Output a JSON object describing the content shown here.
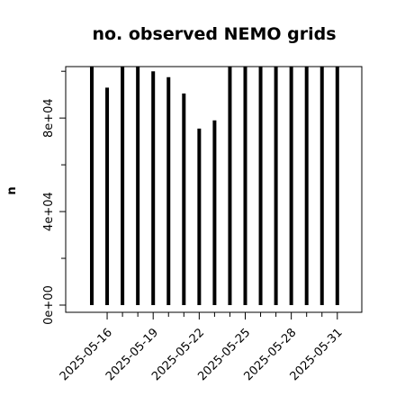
{
  "chart_data": {
    "type": "bar",
    "title": "no. observed NEMO grids",
    "xlabel": "",
    "ylabel": "n",
    "categories": [
      "2025-05-15",
      "2025-05-16",
      "2025-05-17",
      "2025-05-18",
      "2025-05-19",
      "2025-05-20",
      "2025-05-21",
      "2025-05-22",
      "2025-05-23",
      "2025-05-24",
      "2025-05-25",
      "2025-05-26",
      "2025-05-27",
      "2025-05-28",
      "2025-05-29",
      "2025-05-30",
      "2025-05-31"
    ],
    "values": [
      102000,
      93000,
      102000,
      102000,
      100000,
      97500,
      90500,
      75500,
      79000,
      102000,
      102000,
      102000,
      102000,
      102000,
      102000,
      102000,
      102000
    ],
    "ylim": [
      0,
      102000
    ],
    "yticks": [
      0,
      40000,
      80000
    ],
    "ytick_labels": [
      "0e+00",
      "4e+04",
      "8e+04"
    ],
    "xtick_labels": [
      "2025-05-16",
      "2025-05-19",
      "2025-05-22",
      "2025-05-25",
      "2025-05-28",
      "2025-05-31"
    ],
    "grid": false,
    "legend": "none"
  }
}
